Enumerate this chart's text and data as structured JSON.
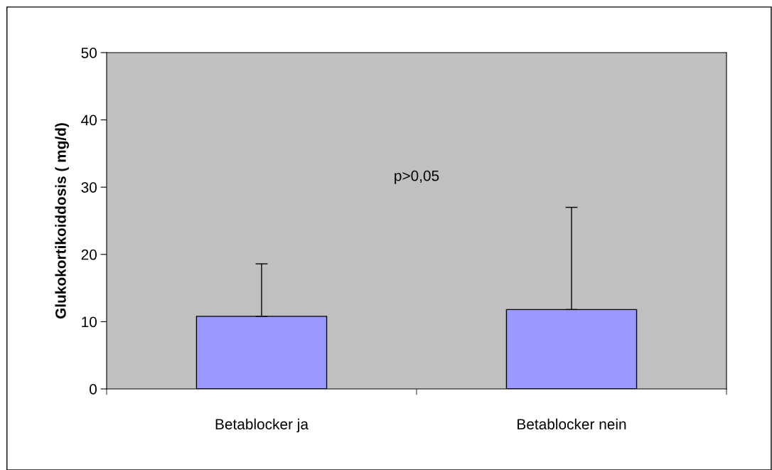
{
  "chart_data": {
    "type": "bar",
    "ylabel": "Glukokortikoiddosis ( mg/d)",
    "categories": [
      "Betablocker ja",
      "Betablocker nein"
    ],
    "values": [
      10.8,
      11.8
    ],
    "color": "#9999ff",
    "errors": [
      [
        10.8,
        18.6
      ],
      [
        11.8,
        27.0
      ]
    ],
    "ylim": [
      0,
      50
    ],
    "yticks": [
      0,
      10,
      20,
      30,
      40,
      50
    ],
    "grid": false,
    "legend": false,
    "annotations": [
      "p>0,05"
    ]
  }
}
